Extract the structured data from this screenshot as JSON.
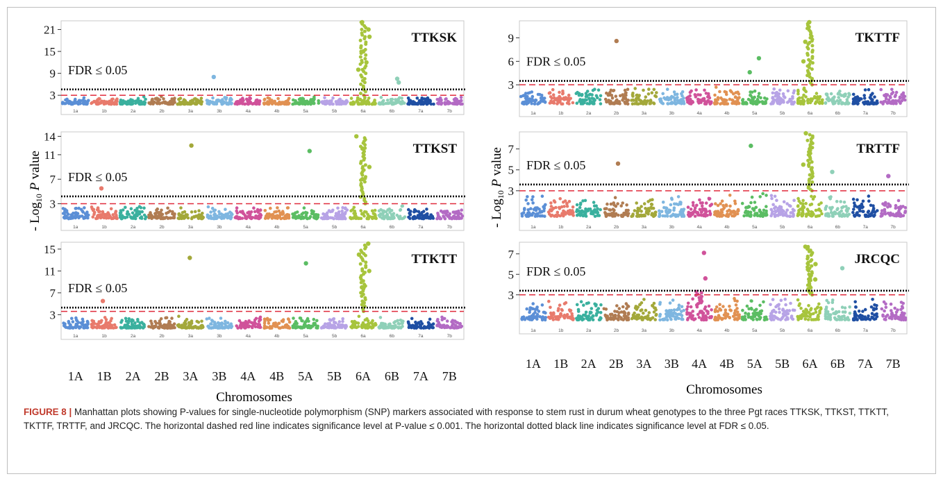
{
  "chromosomes": [
    "1A",
    "1B",
    "2A",
    "2B",
    "3A",
    "3B",
    "4A",
    "4B",
    "5A",
    "5B",
    "6A",
    "6B",
    "7A",
    "7B"
  ],
  "fdr_label": "FDR ≤ 0.05",
  "y_axis_label_left": "- Log10 P value",
  "y_axis_label_right": "- Log10 P value",
  "x_axis_label_left": "Chromosomes",
  "x_axis_label_right": "Chromosomes",
  "colors": {
    "1A": "#5b8fd6",
    "1B": "#e87a6c",
    "2A": "#3ab09e",
    "2B": "#b07c52",
    "3A": "#a3a83a",
    "3B": "#7eb6e0",
    "4A": "#d0529a",
    "4B": "#e19152",
    "5A": "#5bbd63",
    "5B": "#b7a3e6",
    "6A": "#a7c43c",
    "6B": "#8fd0b8",
    "7A": "#1f4fa3",
    "7B": "#b36bc4",
    "fdr_line": "#000000",
    "p001_line": "#e02b3c"
  },
  "caption": {
    "label": "FIGURE 8 |",
    "text": "Manhattan plots showing P-values for single-nucleotide polymorphism (SNP) markers associated with response to stem rust in durum wheat genotypes to the three Pgt races TTKSK, TTKST, TTKTT, TKTTF, TRTTF, and JRCQC. The horizontal dashed red line indicates significance level at P-value ≤ 0.001. The horizontal dotted black line indicates significance level at FDR ≤ 0.05."
  },
  "chart_data": [
    {
      "type": "scatter",
      "title": "TTKSK",
      "ylabel": "- Log10 P value",
      "xlabel": "Chromosomes",
      "ylim": [
        0,
        23
      ],
      "yticks": [
        3,
        9,
        15,
        21
      ],
      "fdr_threshold": 4.6,
      "p_threshold": 3.0,
      "peaks": [
        {
          "chromosome": "3B",
          "y": 8
        },
        {
          "chromosome": "6A",
          "y": 23
        },
        {
          "chromosome": "6A",
          "y": 21
        },
        {
          "chromosome": "6A",
          "y": 19
        },
        {
          "chromosome": "6A",
          "y": 15
        },
        {
          "chromosome": "6A",
          "y": 12
        },
        {
          "chromosome": "6A",
          "y": 10
        },
        {
          "chromosome": "6B",
          "y": 7.5
        },
        {
          "chromosome": "6B",
          "y": 6.5
        }
      ]
    },
    {
      "type": "scatter",
      "title": "TTKST",
      "ylabel": "- Log10 P value",
      "xlabel": "Chromosomes",
      "ylim": [
        0,
        14.5
      ],
      "yticks": [
        3,
        7,
        11,
        14
      ],
      "fdr_threshold": 4.2,
      "p_threshold": 3.0,
      "peaks": [
        {
          "chromosome": "1B",
          "y": 5.5
        },
        {
          "chromosome": "3A",
          "y": 12.5
        },
        {
          "chromosome": "5A",
          "y": 11.6
        },
        {
          "chromosome": "6A",
          "y": 14
        },
        {
          "chromosome": "6A",
          "y": 12
        },
        {
          "chromosome": "6A",
          "y": 9
        },
        {
          "chromosome": "6A",
          "y": 7
        }
      ]
    },
    {
      "type": "scatter",
      "title": "TTKTT",
      "ylabel": "- Log10 P value",
      "xlabel": "Chromosomes",
      "ylim": [
        0,
        16
      ],
      "yticks": [
        3,
        7,
        11,
        15
      ],
      "fdr_threshold": 4.3,
      "p_threshold": 3.6,
      "peaks": [
        {
          "chromosome": "1B",
          "y": 5.5
        },
        {
          "chromosome": "3A",
          "y": 13.4
        },
        {
          "chromosome": "5A",
          "y": 12.4
        },
        {
          "chromosome": "6A",
          "y": 16
        },
        {
          "chromosome": "6A",
          "y": 14
        },
        {
          "chromosome": "6A",
          "y": 11
        },
        {
          "chromosome": "6A",
          "y": 8
        }
      ]
    },
    {
      "type": "scatter",
      "title": "TKTTF",
      "ylabel": "- Log10 P value",
      "xlabel": "Chromosomes",
      "ylim": [
        0,
        11
      ],
      "yticks": [
        3,
        6,
        9
      ],
      "fdr_threshold": 3.5,
      "p_threshold": 3.0,
      "peaks": [
        {
          "chromosome": "2B",
          "y": 8.6
        },
        {
          "chromosome": "5A",
          "y": 6.4
        },
        {
          "chromosome": "5A",
          "y": 4.6
        },
        {
          "chromosome": "6A",
          "y": 11
        },
        {
          "chromosome": "6A",
          "y": 8.5
        },
        {
          "chromosome": "6A",
          "y": 6
        }
      ]
    },
    {
      "type": "scatter",
      "title": "TRTTF",
      "ylabel": "- Log10 P value",
      "xlabel": "Chromosomes",
      "ylim": [
        0,
        8.5
      ],
      "yticks": [
        3,
        5,
        7
      ],
      "fdr_threshold": 3.6,
      "p_threshold": 3.0,
      "peaks": [
        {
          "chromosome": "2B",
          "y": 5.6
        },
        {
          "chromosome": "5A",
          "y": 7.3
        },
        {
          "chromosome": "6A",
          "y": 8.5
        },
        {
          "chromosome": "6A",
          "y": 7
        },
        {
          "chromosome": "6A",
          "y": 5.5
        },
        {
          "chromosome": "6B",
          "y": 4.8
        },
        {
          "chromosome": "7B",
          "y": 4.4
        }
      ]
    },
    {
      "type": "scatter",
      "title": "JRCQC",
      "ylabel": "- Log10 P value",
      "xlabel": "Chromosomes",
      "ylim": [
        0,
        8
      ],
      "yticks": [
        3,
        5,
        7
      ],
      "fdr_threshold": 3.4,
      "p_threshold": 3.0,
      "peaks": [
        {
          "chromosome": "4A",
          "y": 7.1
        },
        {
          "chromosome": "4A",
          "y": 4.6
        },
        {
          "chromosome": "6A",
          "y": 7.7
        },
        {
          "chromosome": "6A",
          "y": 6
        },
        {
          "chromosome": "6A",
          "y": 4.5
        },
        {
          "chromosome": "6B",
          "y": 5.6
        }
      ]
    }
  ]
}
